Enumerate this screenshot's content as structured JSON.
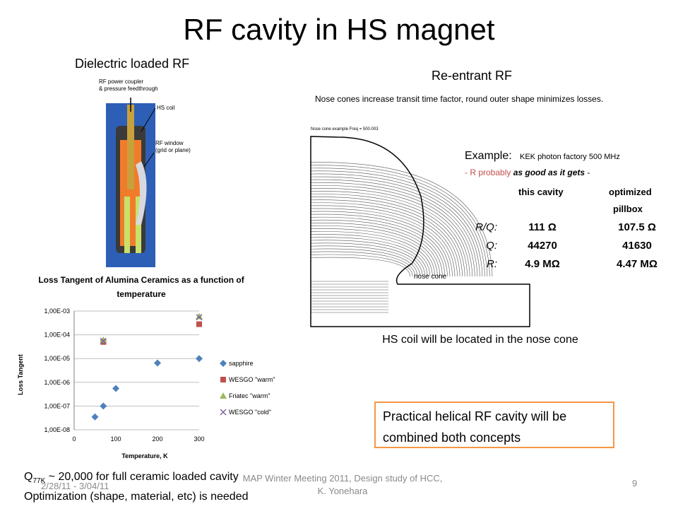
{
  "slide": {
    "title": "RF cavity in HS magnet",
    "left_heading": "Dielectric loaded RF",
    "right_heading": "Re-entrant RF",
    "hs_note": "HS coil will be located in the nose cone",
    "callout": "Practical helical RF cavity will be combined both concepts",
    "footer_q_prefix": "Q",
    "footer_q_sub": "77K",
    "footer_q_rest": " ~ 20,000 for full ceramic loaded cavity",
    "footer_line2": "Optimization (shape, material, etc) is needed",
    "footer_date": "2/28/11 - 3/04/11",
    "footer_center": "MAP Winter Meeting 2011, Design study of HCC, K. Yonehara",
    "page_number": "9"
  },
  "coil_figure": {
    "label_coupler_line1": "RF power coupler",
    "label_coupler_line2": "& pressure feedthrough",
    "label_hscoil": "HS coil",
    "label_window_line1": "RF window",
    "label_window_line2": "(grid or plane)"
  },
  "reentrant_figure": {
    "header": "Nose cones increase transit time factor,  round outer shape minimizes losses.",
    "small_caption": "Nose cone example Freq =    500.003",
    "nose_label": "nose cone",
    "example_label": "Example: ",
    "example_value": "KEK photon factory 500 MHz",
    "bullet_prefix": "-  R probably ",
    "bullet_emph": "as good as it gets",
    "bullet_suffix": "  -",
    "col1": "this cavity",
    "col2_line1": "optimized",
    "col2_line2": "pillbox",
    "rows": [
      {
        "label": "R/Q:",
        "v1": "111 Ω",
        "v2": "107.5 Ω"
      },
      {
        "label": "Q:",
        "v1": "44270",
        "v2": "41630"
      },
      {
        "label": "R:",
        "v1": "4.9 MΩ",
        "v2": "4.47 MΩ"
      }
    ]
  },
  "colors": {
    "sapphire": "#4f81bd",
    "wesgo_warm": "#c0504d",
    "friatec_warm": "#9bbb59",
    "wesgo_cold": "#8064a2",
    "callout_border": "#f79646"
  },
  "chart_data": {
    "type": "scatter",
    "title_line1": "Loss Tangent of Alumina Ceramics as a function of",
    "title_line2": "temperature",
    "xlabel": "Temperature, K",
    "ylabel": "Loss Tangent",
    "xlim": [
      0,
      300
    ],
    "ylim_log10": [
      -8,
      -3
    ],
    "y_scale": "log",
    "x_ticks": [
      "0",
      "100",
      "200",
      "300"
    ],
    "y_ticks": [
      "1,00E-08",
      "1,00E-07",
      "1,00E-06",
      "1,00E-05",
      "1,00E-04",
      "1,00E-03"
    ],
    "legend_position": "right",
    "series": [
      {
        "name": "sapphire",
        "marker": "diamond",
        "points": [
          [
            50,
            3.5e-08
          ],
          [
            70,
            1e-07
          ],
          [
            100,
            5.5e-07
          ],
          [
            200,
            6.5e-06
          ],
          [
            300,
            1e-05
          ]
        ]
      },
      {
        "name": "WESGO \"warm\"",
        "marker": "square",
        "points": [
          [
            70,
            5e-05
          ],
          [
            300,
            0.00028
          ]
        ]
      },
      {
        "name": "Friatec \"warm\"",
        "marker": "triangle",
        "points": [
          [
            70,
            6e-05
          ],
          [
            300,
            0.0006
          ]
        ]
      },
      {
        "name": "WESGO \"cold\"",
        "marker": "x",
        "points": [
          [
            70,
            5.5e-05
          ],
          [
            300,
            0.00055
          ]
        ]
      }
    ]
  }
}
